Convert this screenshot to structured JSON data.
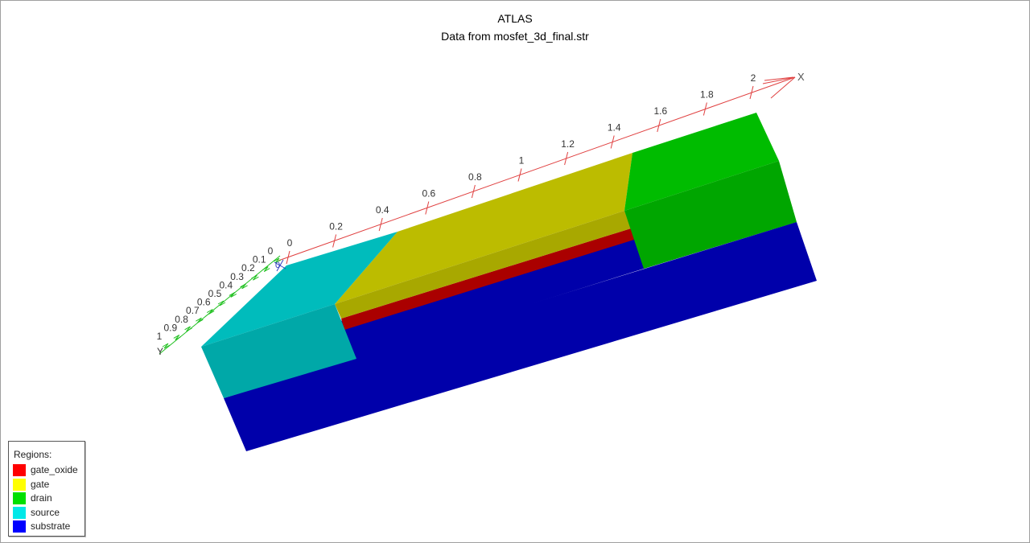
{
  "title": "ATLAS",
  "subtitle": "Data from mosfet_3d_final.str",
  "axes": {
    "x": {
      "label": "X",
      "color": "#e04040",
      "ticks": [
        "0",
        "0.2",
        "0.4",
        "0.6",
        "0.8",
        "1",
        "1.2",
        "1.4",
        "1.6",
        "1.8",
        "2"
      ]
    },
    "y": {
      "label": "Y",
      "color": "#20c020",
      "ticks": [
        "0",
        "0.1",
        "0.2",
        "0.3",
        "0.4",
        "0.5",
        "0.6",
        "0.7",
        "0.8",
        "0.9",
        "1"
      ]
    },
    "z": {
      "label": "0",
      "color": "#3040c0"
    }
  },
  "legend": {
    "title": "Regions:",
    "items": [
      {
        "label": "gate_oxide",
        "color": "#ff0000"
      },
      {
        "label": "gate",
        "color": "#ffff00"
      },
      {
        "label": "drain",
        "color": "#00e000"
      },
      {
        "label": "source",
        "color": "#00e8e8"
      },
      {
        "label": "substrate",
        "color": "#0000ff"
      }
    ]
  },
  "faces": {
    "substrate": {
      "top": "#0000aa",
      "front": "#0000aa"
    },
    "source": {
      "top": "#00bcbc",
      "front": "#00a8a8"
    },
    "gate": {
      "top": "#bcbc00",
      "front": "#a8a800"
    },
    "gate_oxide": {
      "front": "#aa0000"
    },
    "drain": {
      "top": "#00bc00",
      "front": "#00a600"
    }
  }
}
